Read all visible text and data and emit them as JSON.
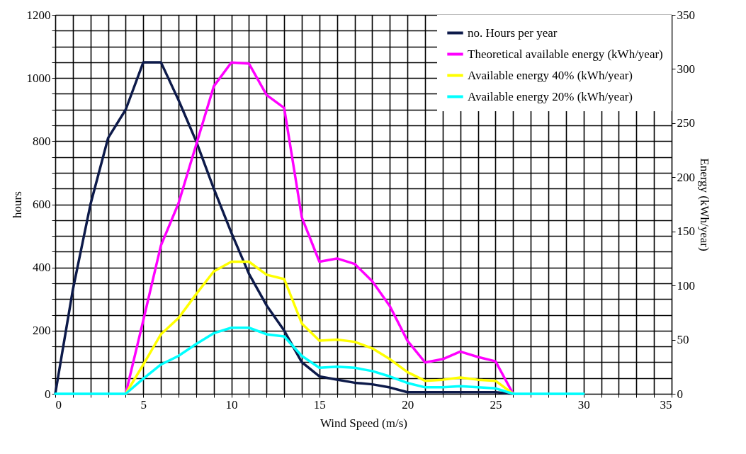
{
  "chart_data": {
    "type": "line",
    "xlabel": "Wind Speed (m/s)",
    "ylabel": "hours",
    "y2label": "Energy (kWh/year)",
    "xlim": [
      0,
      35
    ],
    "ylim": [
      0,
      1200
    ],
    "y2lim": [
      0,
      350
    ],
    "xticks": [
      0,
      {
        "value": 1,
        "label": null
      },
      {
        "value": 2,
        "label": null
      },
      {
        "value": 3,
        "label": null
      },
      {
        "value": 4,
        "label": null
      },
      5,
      {
        "value": 6,
        "label": null
      },
      {
        "value": 7,
        "label": null
      },
      {
        "value": 8,
        "label": null
      },
      {
        "value": 9,
        "label": null
      },
      10,
      {
        "value": 11,
        "label": null
      },
      {
        "value": 12,
        "label": null
      },
      {
        "value": 13,
        "label": null
      },
      {
        "value": 14,
        "label": null
      },
      15,
      {
        "value": 16,
        "label": null
      },
      {
        "value": 17,
        "label": null
      },
      {
        "value": 18,
        "label": null
      },
      {
        "value": 19,
        "label": null
      },
      20,
      {
        "value": 21,
        "label": null
      },
      {
        "value": 22,
        "label": null
      },
      {
        "value": 23,
        "label": null
      },
      {
        "value": 24,
        "label": null
      },
      25,
      {
        "value": 26,
        "label": null
      },
      {
        "value": 27,
        "label": null
      },
      {
        "value": 28,
        "label": null
      },
      {
        "value": 29,
        "label": null
      },
      30,
      {
        "value": 31,
        "label": null
      },
      {
        "value": 32,
        "label": null
      },
      {
        "value": 33,
        "label": null
      },
      {
        "value": 34,
        "label": null
      },
      35
    ],
    "yticks": [
      0,
      {
        "value": 50,
        "label": null
      },
      {
        "value": 100,
        "label": null
      },
      {
        "value": 150,
        "label": null
      },
      200,
      {
        "value": 250,
        "label": null
      },
      {
        "value": 300,
        "label": null
      },
      {
        "value": 350,
        "label": null
      },
      400,
      {
        "value": 450,
        "label": null
      },
      {
        "value": 500,
        "label": null
      },
      {
        "value": 550,
        "label": null
      },
      600,
      {
        "value": 650,
        "label": null
      },
      {
        "value": 700,
        "label": null
      },
      {
        "value": 750,
        "label": null
      },
      800,
      {
        "value": 850,
        "label": null
      },
      {
        "value": 900,
        "label": null
      },
      {
        "value": 950,
        "label": null
      },
      1000,
      {
        "value": 1050,
        "label": null
      },
      {
        "value": 1100,
        "label": null
      },
      {
        "value": 1150,
        "label": null
      },
      1200
    ],
    "y2ticks": [
      0,
      50,
      100,
      150,
      200,
      250,
      300,
      350
    ],
    "grid": true,
    "legend": "top right",
    "line_style": "solid",
    "marker": "none",
    "series": [
      {
        "name": "no. Hours per year",
        "color": "#0d1a4a",
        "x": [
          0,
          1,
          2,
          3,
          4,
          5,
          6,
          7,
          8,
          9,
          10,
          11,
          12,
          13,
          14,
          15,
          16,
          17,
          18,
          19,
          20,
          21,
          22,
          23,
          24,
          25,
          26
        ],
        "values": [
          0,
          330,
          600,
          810,
          900,
          1050,
          1050,
          930,
          800,
          650,
          510,
          380,
          280,
          200,
          100,
          55,
          45,
          35,
          30,
          20,
          5,
          5,
          5,
          5,
          5,
          5,
          0
        ]
      },
      {
        "name": "Theoretical available energy (kWh/year)",
        "color": "#ff00ff",
        "axis": "y2",
        "x": [
          4,
          5,
          6,
          7,
          8,
          9,
          10,
          11,
          12,
          13,
          14,
          15,
          16,
          17,
          18,
          19,
          20,
          21,
          22,
          23,
          24,
          25,
          26
        ],
        "values": [
          0,
          68,
          137,
          176,
          230,
          284,
          306,
          305,
          276,
          264,
          163,
          122,
          125,
          120,
          104,
          81,
          49,
          29,
          32,
          39,
          34,
          30,
          0
        ]
      },
      {
        "name": "Available energy 40% (kWh/year)",
        "color": "#ffff00",
        "axis": "y2",
        "x": [
          4,
          5,
          6,
          7,
          8,
          9,
          10,
          11,
          12,
          13,
          14,
          15,
          16,
          17,
          18,
          19,
          20,
          21,
          22,
          23,
          24,
          25,
          26
        ],
        "values": [
          0,
          27,
          55,
          70,
          92,
          113,
          122,
          122,
          110,
          106,
          65,
          49,
          50,
          48,
          42,
          32,
          20,
          12,
          13,
          15,
          13,
          12,
          0
        ]
      },
      {
        "name": "Available energy 20% (kWh/year)",
        "color": "#00ffff",
        "axis": "y2",
        "x": [
          0,
          1,
          2,
          3,
          4,
          5,
          6,
          7,
          8,
          9,
          10,
          11,
          12,
          13,
          14,
          15,
          16,
          17,
          18,
          19,
          20,
          21,
          22,
          23,
          24,
          25,
          26,
          27,
          28,
          29,
          30
        ],
        "values": [
          0,
          0,
          0,
          0,
          0,
          14,
          27,
          35,
          46,
          56,
          61,
          61,
          55,
          53,
          35,
          24,
          25,
          24,
          21,
          16,
          10,
          6,
          6,
          7,
          6,
          5,
          0,
          0,
          0,
          0,
          0
        ]
      }
    ]
  }
}
